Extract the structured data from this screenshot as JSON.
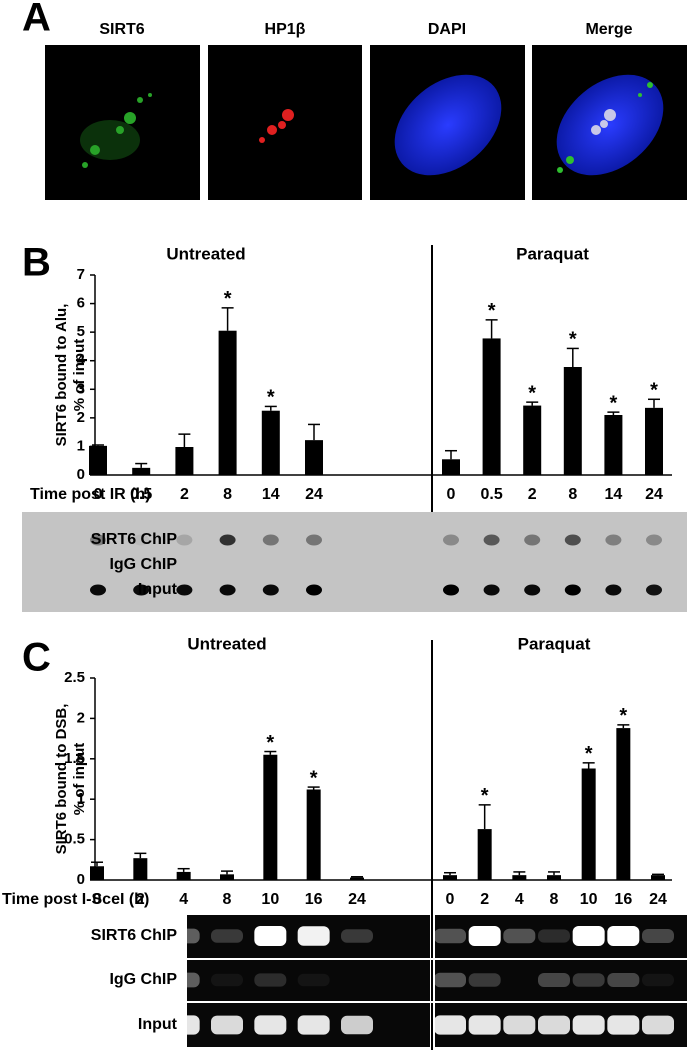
{
  "panel_a": {
    "label": "A",
    "images": [
      "SIRT6",
      "HP1β",
      "DAPI",
      "Merge"
    ]
  },
  "chart_data": [
    {
      "type": "bar",
      "panel_label": "B",
      "y_label": [
        "SIRT6 bound to Alu,",
        "% of input"
      ],
      "x_label": "Time post IR (h)",
      "ylim": [
        0,
        7
      ],
      "yticks": [
        0,
        1,
        2,
        3,
        4,
        5,
        6,
        7
      ],
      "color": "#000000",
      "groups": [
        {
          "name": "Untreated",
          "categories": [
            "0",
            "0.5",
            "2",
            "8",
            "14",
            "24"
          ],
          "values": [
            1.02,
            0.25,
            0.98,
            5.05,
            2.25,
            1.22
          ],
          "errors": [
            0.03,
            0.15,
            0.45,
            0.8,
            0.15,
            0.55
          ],
          "significance": [
            null,
            null,
            null,
            "*",
            "*",
            null
          ]
        },
        {
          "name": "Paraquat",
          "categories": [
            "0",
            "0.5",
            "2",
            "8",
            "14",
            "24"
          ],
          "values": [
            0.55,
            4.78,
            2.43,
            3.78,
            2.1,
            2.35
          ],
          "errors": [
            0.3,
            0.65,
            0.12,
            0.65,
            0.1,
            0.3
          ],
          "significance": [
            null,
            "*",
            "*",
            "*",
            "*",
            "*"
          ]
        }
      ],
      "blot": {
        "rows": [
          "SIRT6 ChIP",
          "IgG ChIP",
          "Input"
        ]
      }
    },
    {
      "type": "bar",
      "panel_label": "C",
      "y_label": [
        "SIRT6 bound to DSB,",
        "% of input"
      ],
      "x_label": "Time post I-SceI (h)",
      "ylim": [
        0,
        2.5
      ],
      "yticks": [
        0,
        0.5,
        1,
        1.5,
        2,
        2.5
      ],
      "color": "#000000",
      "groups": [
        {
          "name": "Untreated",
          "categories": [
            "0",
            "2",
            "4",
            "8",
            "10",
            "16",
            "24"
          ],
          "values": [
            0.17,
            0.27,
            0.1,
            0.07,
            1.55,
            1.12,
            0.03
          ],
          "errors": [
            0.05,
            0.06,
            0.04,
            0.04,
            0.04,
            0.03,
            0.01
          ],
          "significance": [
            null,
            null,
            null,
            null,
            "*",
            "*",
            null
          ]
        },
        {
          "name": "Paraquat",
          "categories": [
            "0",
            "2",
            "4",
            "8",
            "10",
            "16",
            "24"
          ],
          "values": [
            0.06,
            0.63,
            0.06,
            0.06,
            1.38,
            1.88,
            0.06
          ],
          "errors": [
            0.03,
            0.3,
            0.04,
            0.04,
            0.07,
            0.04,
            0.01
          ],
          "significance": [
            null,
            "*",
            null,
            null,
            "*",
            "*",
            null
          ]
        }
      ],
      "blot": {
        "rows": [
          "SIRT6 ChIP",
          "IgG ChIP",
          "Input"
        ]
      }
    }
  ]
}
